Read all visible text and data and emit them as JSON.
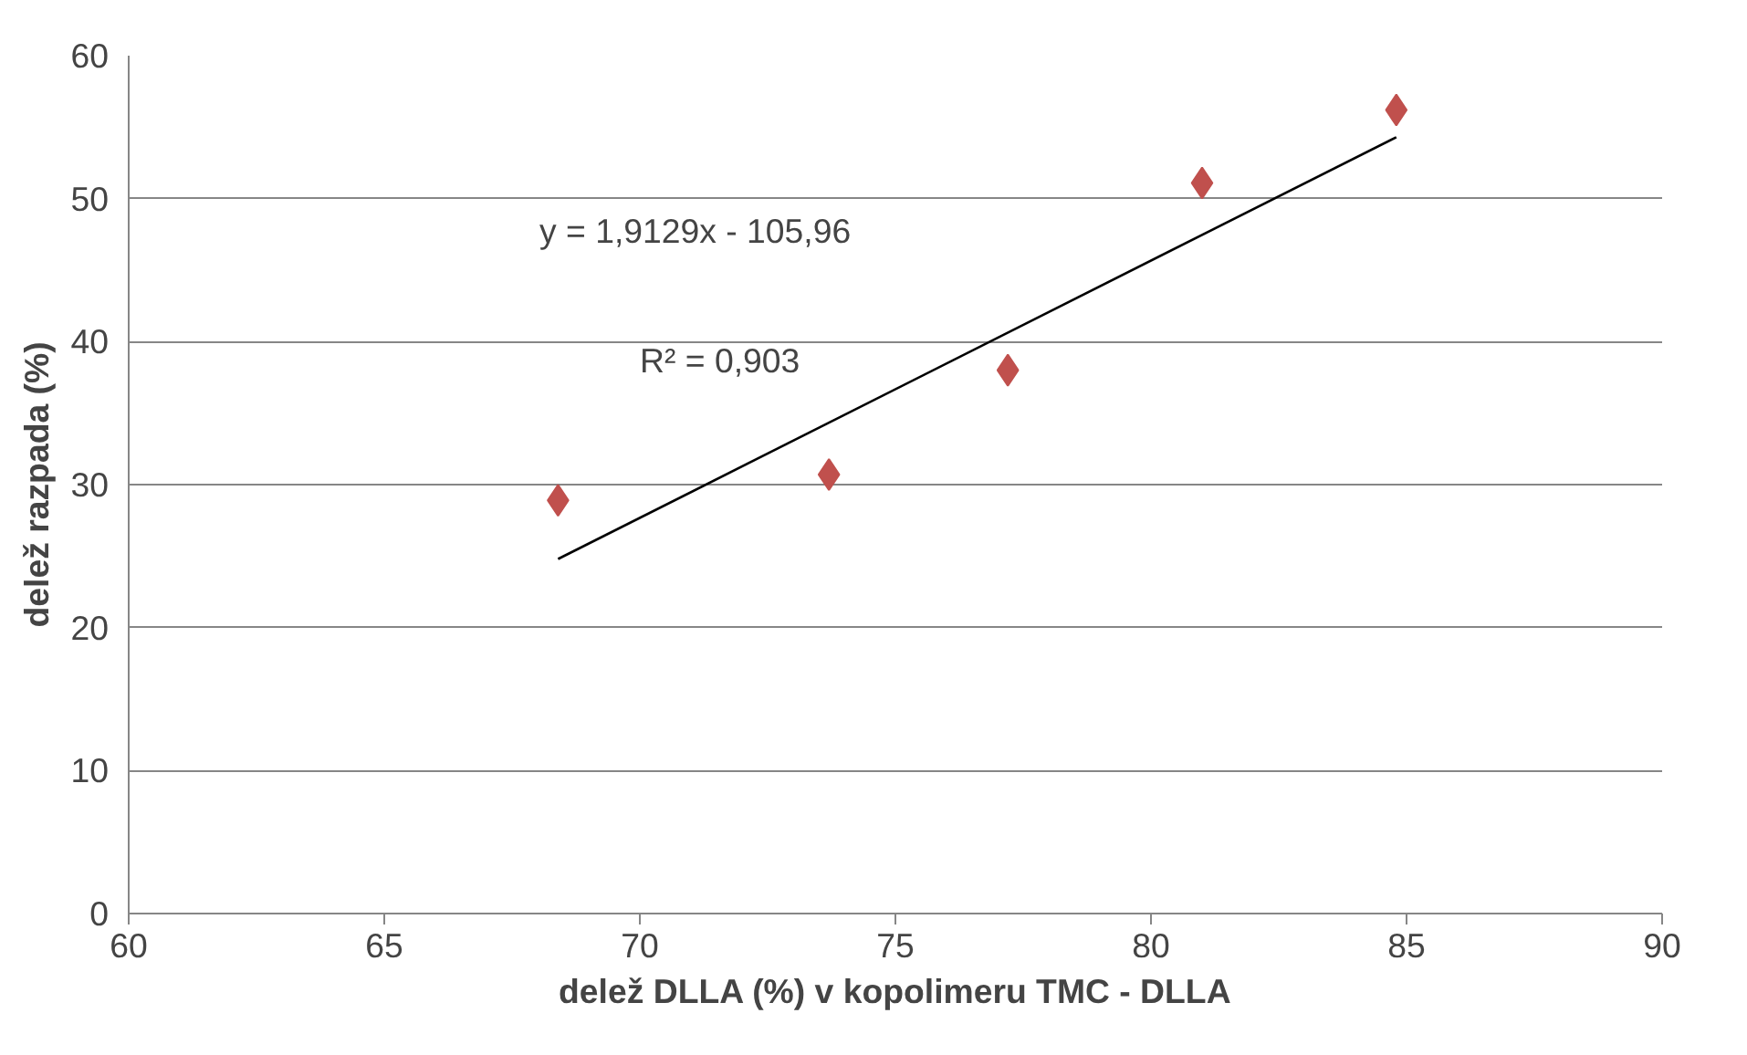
{
  "chart_data": {
    "type": "scatter",
    "xlabel": "delež DLLA (%) v kopolimeru TMC - DLLA",
    "ylabel": "delež razpada (%)",
    "x": [
      68.4,
      73.7,
      77.2,
      81.0,
      84.8
    ],
    "series": [
      {
        "color": "#c0504d",
        "marker": "diamond",
        "values": [
          28.9,
          30.7,
          38.0,
          51.1,
          56.2
        ]
      },
      {
        "type": "line",
        "color": "#000000",
        "x": [
          68.4,
          84.8
        ],
        "values": [
          24.8,
          54.3
        ],
        "marker": "none"
      }
    ],
    "xlim": [
      60,
      90
    ],
    "xticks": [
      60,
      65,
      70,
      75,
      80,
      85,
      90
    ],
    "ylim": [
      0,
      60
    ],
    "yticks": [
      0,
      10,
      20,
      30,
      40,
      50,
      60
    ],
    "grid": "y",
    "annotations": [
      "y = 1,9129x - 105,96",
      "R² = 0,903"
    ]
  }
}
